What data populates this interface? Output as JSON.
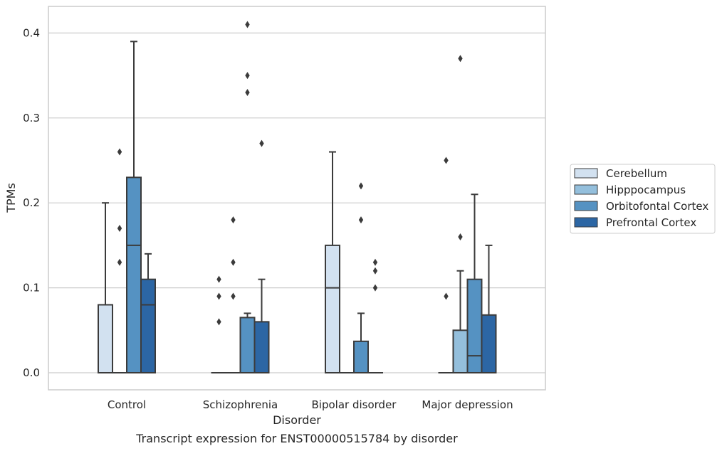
{
  "chart_data": {
    "type": "box",
    "caption": "Transcript expression for ENST00000515784 by disorder",
    "xlabel": "Disorder",
    "ylabel": "TPMs",
    "ylim": [
      -0.02,
      0.43
    ],
    "yticks": [
      0.0,
      0.1,
      0.2,
      0.3,
      0.4
    ],
    "ytick_labels": [
      "0.0",
      "0.1",
      "0.2",
      "0.3",
      "0.4"
    ],
    "grid": "horizontal",
    "legend_position": "right",
    "categories": [
      "Control",
      "Schizophrenia",
      "Bipolar disorder",
      "Major depression"
    ],
    "series": [
      {
        "name": "Cerebellum",
        "color": "#d2e1f0",
        "boxes": [
          {
            "q1": 0.0,
            "median": 0.0,
            "q3": 0.08,
            "whisker_low": 0.0,
            "whisker_high": 0.2,
            "outliers": []
          },
          {
            "q1": 0.0,
            "median": 0.0,
            "q3": 0.0,
            "whisker_low": 0.0,
            "whisker_high": 0.0,
            "outliers": [
              0.06,
              0.09,
              0.11
            ]
          },
          {
            "q1": 0.0,
            "median": 0.1,
            "q3": 0.15,
            "whisker_low": 0.0,
            "whisker_high": 0.26,
            "outliers": []
          },
          {
            "q1": 0.0,
            "median": 0.0,
            "q3": 0.0,
            "whisker_low": 0.0,
            "whisker_high": 0.0,
            "outliers": [
              0.09,
              0.25
            ]
          }
        ]
      },
      {
        "name": "Hipppocampus",
        "color": "#94bfdc",
        "boxes": [
          {
            "q1": 0.0,
            "median": 0.0,
            "q3": 0.0,
            "whisker_low": 0.0,
            "whisker_high": 0.0,
            "outliers": [
              0.13,
              0.17,
              0.26
            ]
          },
          {
            "q1": 0.0,
            "median": 0.0,
            "q3": 0.0,
            "whisker_low": 0.0,
            "whisker_high": 0.0,
            "outliers": [
              0.09,
              0.13,
              0.18
            ]
          },
          {
            "q1": 0.0,
            "median": 0.0,
            "q3": 0.0,
            "whisker_low": 0.0,
            "whisker_high": 0.0,
            "outliers": []
          },
          {
            "q1": 0.0,
            "median": 0.0,
            "q3": 0.05,
            "whisker_low": 0.0,
            "whisker_high": 0.12,
            "outliers": [
              0.16,
              0.37
            ]
          }
        ]
      },
      {
        "name": "Orbitofontal Cortex",
        "color": "#5592c2",
        "boxes": [
          {
            "q1": 0.0,
            "median": 0.15,
            "q3": 0.23,
            "whisker_low": 0.0,
            "whisker_high": 0.39,
            "outliers": []
          },
          {
            "q1": 0.0,
            "median": 0.0,
            "q3": 0.065,
            "whisker_low": 0.0,
            "whisker_high": 0.07,
            "outliers": [
              0.33,
              0.35,
              0.41
            ]
          },
          {
            "q1": 0.0,
            "median": 0.0,
            "q3": 0.037,
            "whisker_low": 0.0,
            "whisker_high": 0.07,
            "outliers": [
              0.18,
              0.22
            ]
          },
          {
            "q1": 0.0,
            "median": 0.02,
            "q3": 0.11,
            "whisker_low": 0.0,
            "whisker_high": 0.21,
            "outliers": []
          }
        ]
      },
      {
        "name": "Prefrontal Cortex",
        "color": "#2c66a4",
        "boxes": [
          {
            "q1": 0.0,
            "median": 0.08,
            "q3": 0.11,
            "whisker_low": 0.0,
            "whisker_high": 0.14,
            "outliers": []
          },
          {
            "q1": 0.0,
            "median": 0.0,
            "q3": 0.06,
            "whisker_low": 0.0,
            "whisker_high": 0.11,
            "outliers": [
              0.27
            ]
          },
          {
            "q1": 0.0,
            "median": 0.0,
            "q3": 0.0,
            "whisker_low": 0.0,
            "whisker_high": 0.0,
            "outliers": [
              0.1,
              0.12,
              0.13
            ]
          },
          {
            "q1": 0.0,
            "median": 0.0,
            "q3": 0.068,
            "whisker_low": 0.0,
            "whisker_high": 0.15,
            "outliers": []
          }
        ]
      }
    ]
  }
}
